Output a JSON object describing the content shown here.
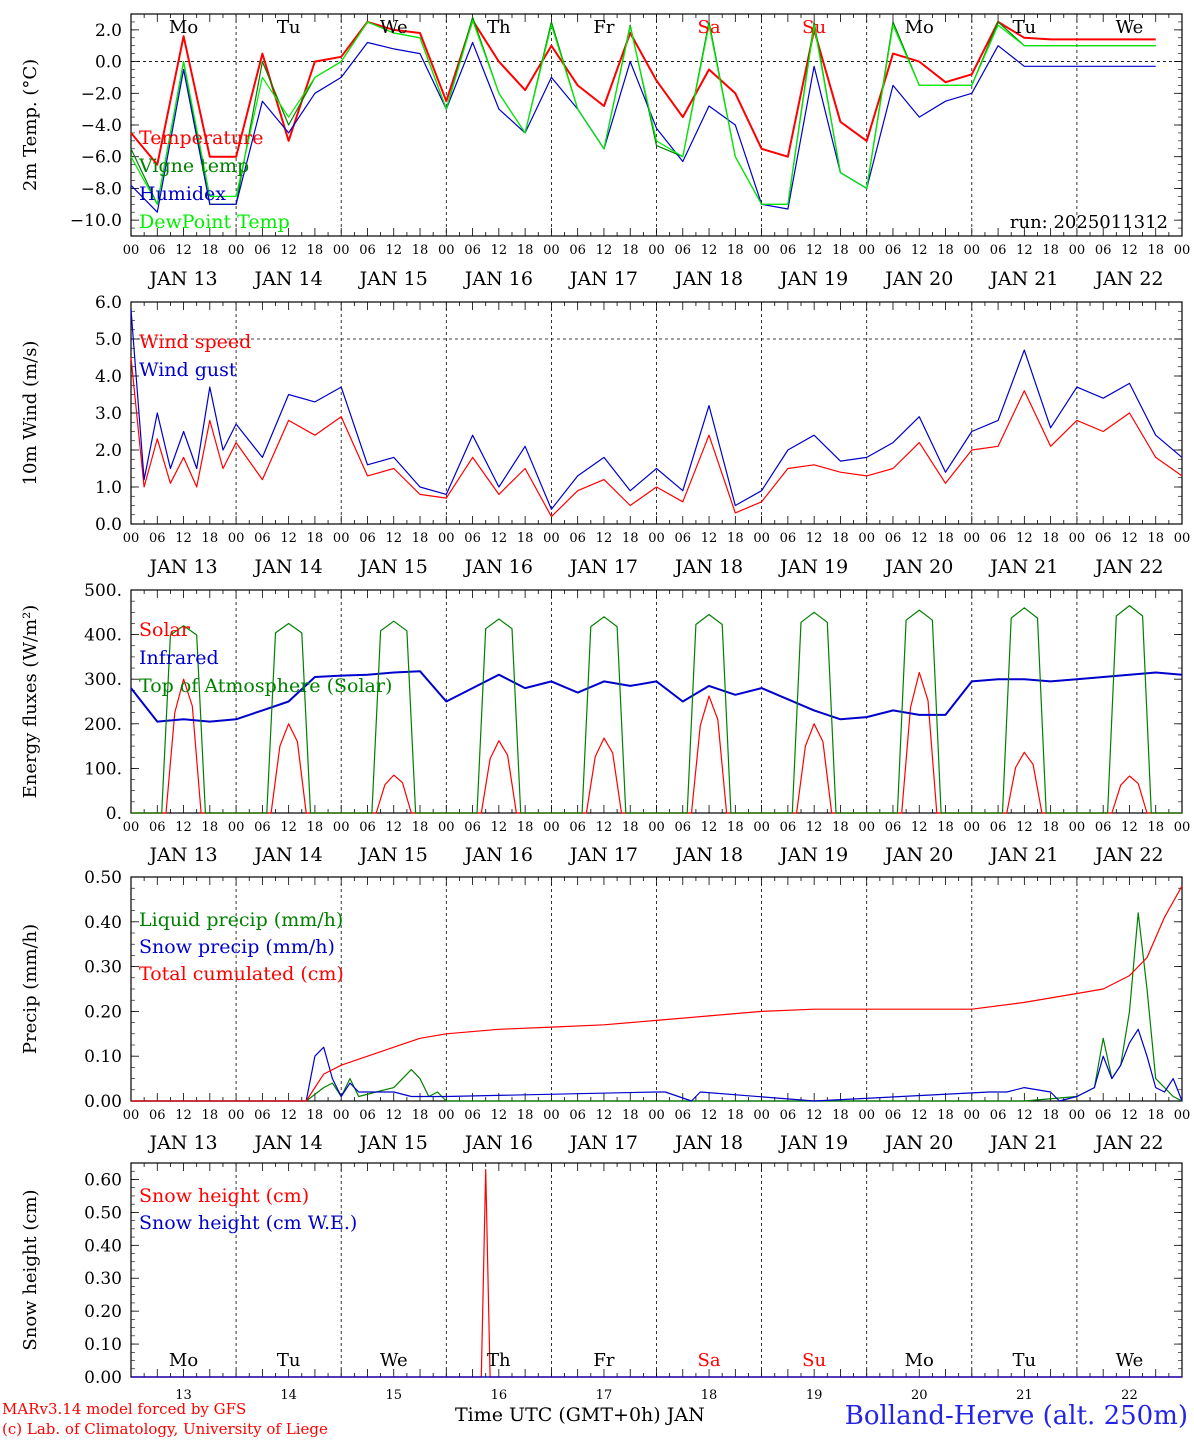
{
  "run_label": "run: 2025011312",
  "x_axis": {
    "hour_ticks": [
      "00",
      "06",
      "12",
      "18"
    ],
    "final_hour_tick": "00",
    "date_labels": [
      "JAN 13",
      "JAN 14",
      "JAN 15",
      "JAN 16",
      "JAN 17",
      "JAN 18",
      "JAN 19",
      "JAN 20",
      "JAN 21",
      "JAN 22"
    ],
    "day_names": [
      "Mo",
      "Tu",
      "We",
      "Th",
      "Fr",
      "Sa",
      "Su",
      "Mo",
      "Tu",
      "We"
    ],
    "day_name_colors": [
      "#000000",
      "#000000",
      "#000000",
      "#000000",
      "#000000",
      "#ff0000",
      "#ff0000",
      "#000000",
      "#000000",
      "#000000"
    ],
    "day_numbers": [
      "13",
      "14",
      "15",
      "16",
      "17",
      "18",
      "19",
      "20",
      "21",
      "22"
    ],
    "bottom_label": "Time UTC (GMT+0h) JAN"
  },
  "footer": {
    "credit_1": "MARv3.14 model forced by GFS",
    "credit_2": "(c) Lab. of Climatology, University of Liege",
    "station": "Bolland-Herve (alt. 250m)"
  },
  "chart_data": [
    {
      "type": "line",
      "ylabel": "2m Temp. (°C)",
      "ylim": [
        -11,
        3
      ],
      "yticks": [
        -10,
        -8,
        -6,
        -4,
        -2,
        0,
        2
      ],
      "ytick_labels": [
        "−10.0",
        "−8.0",
        "−6.0",
        "−4.0",
        "−2.0",
        "0.0",
        "2.0"
      ],
      "reference_line": 0,
      "grid": "dashed vertical lines at 00 UTC of each day",
      "legend_placement": "left",
      "series": [
        {
          "name": "Temperature",
          "color": "#ff0000",
          "x": [
            0,
            6,
            12,
            18,
            24,
            30,
            36,
            42,
            48,
            54,
            60,
            66,
            72,
            78,
            84,
            90,
            96,
            102,
            108,
            114,
            120,
            126,
            132,
            138,
            144,
            150,
            156,
            162,
            168,
            174,
            180,
            186,
            192,
            198,
            204,
            210,
            216,
            222,
            228,
            234
          ],
          "values": [
            -4.5,
            -6.5,
            1.6,
            -6,
            -6,
            0.5,
            -5,
            0,
            0.3,
            2.5,
            2,
            1.8,
            -2.5,
            2.6,
            0,
            -1.8,
            1,
            -1.5,
            -2.8,
            1.8,
            -1.2,
            -3.5,
            -0.5,
            -2,
            -5.5,
            -6,
            2,
            -3.8,
            -5,
            0.5,
            0,
            -1.3,
            -0.8,
            2.5,
            1.5,
            1.4,
            1.4,
            1.4,
            1.4,
            1.4
          ]
        },
        {
          "name": "Vigne temp",
          "color": "#008000",
          "x": [
            0,
            6,
            12,
            18,
            24,
            30,
            36,
            42,
            48,
            54,
            60,
            66,
            72,
            78,
            84,
            90,
            96,
            102,
            108,
            114,
            120,
            126,
            132,
            138,
            144,
            150,
            156,
            162,
            168,
            174,
            180,
            186,
            192,
            198,
            204,
            210,
            216,
            222,
            228,
            234
          ],
          "values": [
            -5.5,
            -9,
            0,
            -9,
            -9,
            0,
            -4,
            -1,
            0,
            2.5,
            1.8,
            1.5,
            -3,
            2.8,
            -2,
            -4.5,
            2.5,
            -3,
            -5.5,
            2.3,
            -5.3,
            -6,
            2.5,
            -6,
            -9,
            -9,
            2.5,
            -7,
            -8,
            2.5,
            -1.5,
            -1.5,
            -1.5,
            2.5,
            1,
            1,
            1,
            1,
            1,
            1
          ]
        },
        {
          "name": "Humidex",
          "color": "#0000cc",
          "x": [
            0,
            6,
            12,
            18,
            24,
            30,
            36,
            42,
            48,
            54,
            60,
            66,
            72,
            78,
            84,
            90,
            96,
            102,
            108,
            114,
            120,
            126,
            132,
            138,
            144,
            150,
            156,
            162,
            168,
            174,
            180,
            186,
            192,
            198,
            204,
            210,
            216,
            222,
            228,
            234
          ],
          "values": [
            -7.8,
            -9.5,
            -0.5,
            -9,
            -9,
            -2.5,
            -4.5,
            -2,
            -1,
            1.2,
            0.8,
            0.5,
            -3,
            1.2,
            -3,
            -4.5,
            -1,
            -3,
            -5.5,
            0,
            -4.2,
            -6.3,
            -2.8,
            -4,
            -9,
            -9.3,
            -0.3,
            -7,
            -8,
            -1.5,
            -3.5,
            -2.5,
            -2,
            1,
            -0.3,
            -0.3,
            -0.3,
            -0.3,
            -0.3,
            -0.3
          ]
        },
        {
          "name": "DewPoint Temp",
          "color": "#00ee00",
          "x": [
            0,
            6,
            12,
            18,
            24,
            30,
            36,
            42,
            48,
            54,
            60,
            66,
            72,
            78,
            84,
            90,
            96,
            102,
            108,
            114,
            120,
            126,
            132,
            138,
            144,
            150,
            156,
            162,
            168,
            174,
            180,
            186,
            192,
            198,
            204,
            210,
            216,
            222,
            228,
            234
          ],
          "values": [
            -6,
            -9,
            0,
            -8.5,
            -8.5,
            -1,
            -3.5,
            -1,
            0,
            2.5,
            1.8,
            1.5,
            -3,
            2.6,
            -2,
            -4.5,
            2.3,
            -3,
            -5.5,
            2.2,
            -5,
            -6,
            2.3,
            -6,
            -9,
            -9,
            2.3,
            -7,
            -8,
            2.3,
            -1.5,
            -1.5,
            -1.5,
            2.3,
            1,
            1,
            1,
            1,
            1,
            1
          ]
        }
      ]
    },
    {
      "type": "line",
      "ylabel": "10m Wind (m/s)",
      "ylim": [
        0,
        6
      ],
      "yticks": [
        0,
        1,
        2,
        3,
        4,
        5,
        6
      ],
      "ytick_labels": [
        "0.0",
        "1.0",
        "2.0",
        "3.0",
        "4.0",
        "5.0",
        "6.0"
      ],
      "reference_line": 5,
      "legend_placement": "left",
      "series": [
        {
          "name": "Wind speed",
          "color": "#ff0000",
          "x": [
            0,
            3,
            6,
            9,
            12,
            15,
            18,
            21,
            24,
            30,
            36,
            42,
            48,
            54,
            60,
            66,
            72,
            78,
            84,
            90,
            96,
            102,
            108,
            114,
            120,
            126,
            132,
            138,
            144,
            150,
            156,
            162,
            168,
            174,
            180,
            186,
            192,
            198,
            204,
            210,
            216,
            222,
            228,
            234,
            240
          ],
          "values": [
            4.5,
            1,
            2.3,
            1.1,
            1.8,
            1,
            2.8,
            1.5,
            2.2,
            1.2,
            2.8,
            2.4,
            2.9,
            1.3,
            1.5,
            0.8,
            0.7,
            1.8,
            0.8,
            1.5,
            0.2,
            0.9,
            1.2,
            0.5,
            1,
            0.6,
            2.4,
            0.3,
            0.6,
            1.5,
            1.6,
            1.4,
            1.3,
            1.5,
            2.2,
            1.1,
            2,
            2.1,
            3.6,
            2.1,
            2.8,
            2.5,
            3,
            1.8,
            1.3
          ]
        },
        {
          "name": "Wind gust",
          "color": "#0000cc",
          "x": [
            0,
            3,
            6,
            9,
            12,
            15,
            18,
            21,
            24,
            30,
            36,
            42,
            48,
            54,
            60,
            66,
            72,
            78,
            84,
            90,
            96,
            102,
            108,
            114,
            120,
            126,
            132,
            138,
            144,
            150,
            156,
            162,
            168,
            174,
            180,
            186,
            192,
            198,
            204,
            210,
            216,
            222,
            228,
            234,
            240
          ],
          "values": [
            5.8,
            1.2,
            3,
            1.5,
            2.5,
            1.5,
            3.7,
            2,
            2.7,
            1.8,
            3.5,
            3.3,
            3.7,
            1.6,
            1.8,
            1,
            0.8,
            2.4,
            1,
            2.1,
            0.4,
            1.3,
            1.8,
            0.9,
            1.5,
            0.9,
            3.2,
            0.5,
            0.9,
            2,
            2.4,
            1.7,
            1.8,
            2.2,
            2.9,
            1.4,
            2.5,
            2.8,
            4.7,
            2.6,
            3.7,
            3.4,
            3.8,
            2.4,
            1.8
          ]
        }
      ]
    },
    {
      "type": "line",
      "ylabel": "Energy fluxes (W/m²)",
      "ylim": [
        0,
        500
      ],
      "yticks": [
        0,
        100,
        200,
        300,
        400,
        500
      ],
      "ytick_labels": [
        "0.",
        "100.",
        "200.",
        "300.",
        "400.",
        "500."
      ],
      "legend_placement": "left",
      "series": [
        {
          "name": "Solar",
          "color": "#ff0000",
          "peaks": [
            {
              "day": 0,
              "value": 300
            },
            {
              "day": 1,
              "value": 200
            },
            {
              "day": 2,
              "value": 85
            },
            {
              "day": 3,
              "value": 162
            },
            {
              "day": 4,
              "value": 168
            },
            {
              "day": 5,
              "value": 262
            },
            {
              "day": 6,
              "value": 200
            },
            {
              "day": 7,
              "value": 315
            },
            {
              "day": 8,
              "value": 136
            },
            {
              "day": 9,
              "value": 83
            }
          ]
        },
        {
          "name": "Infrared",
          "color": "#0000cc",
          "x": [
            0,
            6,
            12,
            18,
            24,
            30,
            36,
            42,
            48,
            54,
            60,
            66,
            72,
            78,
            84,
            90,
            96,
            102,
            108,
            114,
            120,
            126,
            132,
            138,
            144,
            150,
            156,
            162,
            168,
            174,
            180,
            186,
            192,
            198,
            204,
            210,
            216,
            222,
            228,
            234,
            240
          ],
          "values": [
            280,
            205,
            210,
            205,
            210,
            230,
            250,
            305,
            308,
            310,
            315,
            318,
            250,
            280,
            310,
            280,
            295,
            270,
            295,
            285,
            295,
            250,
            285,
            265,
            280,
            255,
            230,
            210,
            215,
            230,
            220,
            220,
            295,
            300,
            300,
            295,
            300,
            305,
            310,
            315,
            310
          ]
        },
        {
          "name": "Top of Atmosphere (Solar)",
          "color": "#008000",
          "peaks": [
            {
              "day": 0,
              "value": 420
            },
            {
              "day": 1,
              "value": 425
            },
            {
              "day": 2,
              "value": 430
            },
            {
              "day": 3,
              "value": 435
            },
            {
              "day": 4,
              "value": 440
            },
            {
              "day": 5,
              "value": 445
            },
            {
              "day": 6,
              "value": 450
            },
            {
              "day": 7,
              "value": 455
            },
            {
              "day": 8,
              "value": 460
            },
            {
              "day": 9,
              "value": 465
            }
          ]
        }
      ]
    },
    {
      "type": "line",
      "ylabel": "Precip (mm/h)",
      "ylim": [
        0,
        0.5
      ],
      "yticks": [
        0,
        0.1,
        0.2,
        0.3,
        0.4,
        0.5
      ],
      "ytick_labels": [
        "0.00",
        "0.10",
        "0.20",
        "0.30",
        "0.40",
        "0.50"
      ],
      "legend_placement": "left",
      "series": [
        {
          "name": "Liquid precip (mm/h)",
          "color": "#008000",
          "x": [
            0,
            40,
            44,
            46,
            48,
            50,
            52,
            56,
            60,
            64,
            66,
            68,
            70,
            72,
            96,
            168,
            204,
            216,
            220,
            222,
            224,
            226,
            228,
            230,
            232,
            234,
            236,
            238,
            240
          ],
          "values": [
            0,
            0,
            0.03,
            0.04,
            0.01,
            0.05,
            0.01,
            0.02,
            0.03,
            0.07,
            0.05,
            0.01,
            0.02,
            0,
            0,
            0,
            0,
            0.01,
            0.03,
            0.14,
            0.05,
            0.08,
            0.2,
            0.42,
            0.25,
            0.05,
            0.03,
            0.01,
            0
          ]
        },
        {
          "name": "Snow precip (mm/h)",
          "color": "#0000cc",
          "x": [
            0,
            40,
            42,
            44,
            46,
            48,
            50,
            52,
            56,
            60,
            64,
            70,
            72,
            120,
            122,
            128,
            130,
            156,
            196,
            200,
            204,
            210,
            212,
            216,
            220,
            222,
            224,
            226,
            228,
            230,
            232,
            234,
            236,
            238,
            240
          ],
          "values": [
            0,
            0,
            0.1,
            0.12,
            0.05,
            0.01,
            0.04,
            0.02,
            0.02,
            0.02,
            0.01,
            0.01,
            0.01,
            0.02,
            0.02,
            0,
            0.02,
            0,
            0.02,
            0.02,
            0.03,
            0.02,
            0,
            0.01,
            0.03,
            0.1,
            0.05,
            0.08,
            0.13,
            0.16,
            0.1,
            0.03,
            0.02,
            0.05,
            0
          ]
        },
        {
          "name": "Total cumulated (cm)",
          "color": "#ff0000",
          "x": [
            0,
            40,
            44,
            48,
            54,
            60,
            66,
            72,
            84,
            96,
            108,
            120,
            132,
            144,
            156,
            168,
            180,
            192,
            204,
            216,
            222,
            228,
            232,
            236,
            240
          ],
          "values": [
            0,
            0,
            0.06,
            0.08,
            0.1,
            0.12,
            0.14,
            0.15,
            0.16,
            0.165,
            0.17,
            0.18,
            0.19,
            0.2,
            0.205,
            0.205,
            0.205,
            0.205,
            0.22,
            0.24,
            0.25,
            0.28,
            0.32,
            0.41,
            0.48
          ]
        }
      ]
    },
    {
      "type": "line",
      "ylabel": "Snow height (cm)",
      "ylim": [
        0,
        0.65
      ],
      "yticks": [
        0,
        0.1,
        0.2,
        0.3,
        0.4,
        0.5,
        0.6
      ],
      "ytick_labels": [
        "0.00",
        "0.10",
        "0.20",
        "0.30",
        "0.40",
        "0.50",
        "0.60"
      ],
      "legend_placement": "left",
      "series": [
        {
          "name": "Snow height (cm)",
          "color": "#ff0000",
          "x": [
            0,
            80,
            81,
            82,
            240
          ],
          "values": [
            0,
            0,
            0.63,
            0,
            0
          ]
        },
        {
          "name": "Snow height (cm W.E.)",
          "color": "#0000cc",
          "x": [
            0,
            240
          ],
          "values": [
            0,
            0
          ]
        }
      ]
    }
  ]
}
